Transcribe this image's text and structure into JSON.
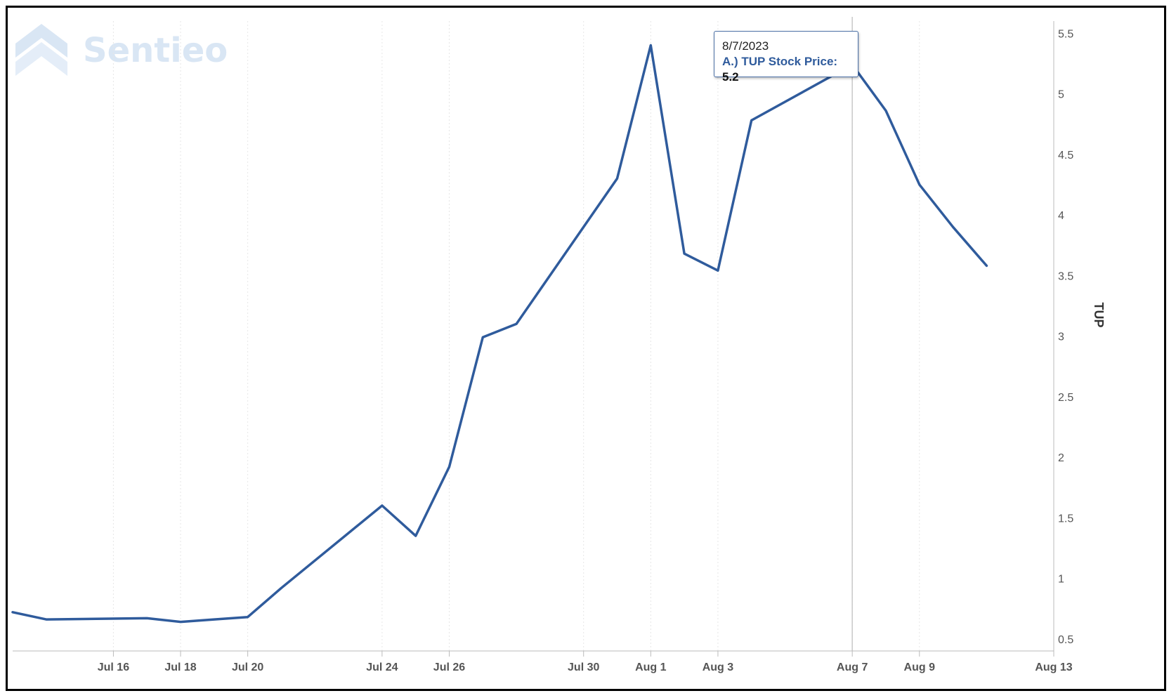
{
  "logo": {
    "text": "Sentieo",
    "icon": "sentieo-chevron-logo-icon"
  },
  "tooltip": {
    "date": "8/7/2023",
    "series_label": "A.) TUP Stock Price:",
    "value": "5.2"
  },
  "colors": {
    "line": "#2f5b9c",
    "grid": "#e6e6e6",
    "crosshair": "#c8c8c8",
    "axis": "#bbbbbb",
    "logo": "#d9e6f4"
  },
  "chart_data": {
    "type": "line",
    "title": "",
    "xlabel": "",
    "ylabel": "TUP",
    "y_axis_position": "right",
    "x_range": [
      "2023-07-13",
      "2023-08-13"
    ],
    "ylim": [
      0.4,
      5.6
    ],
    "x_ticks": [
      {
        "date": "2023-07-16",
        "label": "Jul 16"
      },
      {
        "date": "2023-07-18",
        "label": "Jul 18"
      },
      {
        "date": "2023-07-20",
        "label": "Jul 20"
      },
      {
        "date": "2023-07-24",
        "label": "Jul 24"
      },
      {
        "date": "2023-07-26",
        "label": "Jul 26"
      },
      {
        "date": "2023-07-30",
        "label": "Jul 30"
      },
      {
        "date": "2023-08-01",
        "label": "Aug 1"
      },
      {
        "date": "2023-08-03",
        "label": "Aug 3"
      },
      {
        "date": "2023-08-07",
        "label": "Aug 7"
      },
      {
        "date": "2023-08-09",
        "label": "Aug 9"
      },
      {
        "date": "2023-08-13",
        "label": "Aug 13"
      }
    ],
    "y_ticks": [
      0.5,
      1,
      1.5,
      2,
      2.5,
      3,
      3.5,
      4,
      4.5,
      5,
      5.5
    ],
    "y_tick_labels": [
      "0.5",
      "1",
      "1.5",
      "2",
      "2.5",
      "3",
      "3.5",
      "4",
      "4.5",
      "5",
      "5.5"
    ],
    "crosshair_date": "2023-08-07",
    "series": [
      {
        "name": "A.) TUP Stock Price",
        "points": [
          {
            "x": "2023-07-13",
            "y": 0.72
          },
          {
            "x": "2023-07-14",
            "y": 0.66
          },
          {
            "x": "2023-07-17",
            "y": 0.67
          },
          {
            "x": "2023-07-18",
            "y": 0.64
          },
          {
            "x": "2023-07-19",
            "y": 0.66
          },
          {
            "x": "2023-07-20",
            "y": 0.68
          },
          {
            "x": "2023-07-21",
            "y": 0.92
          },
          {
            "x": "2023-07-24",
            "y": 1.6
          },
          {
            "x": "2023-07-25",
            "y": 1.35
          },
          {
            "x": "2023-07-26",
            "y": 1.92
          },
          {
            "x": "2023-07-27",
            "y": 2.99
          },
          {
            "x": "2023-07-28",
            "y": 3.1
          },
          {
            "x": "2023-07-31",
            "y": 4.3
          },
          {
            "x": "2023-08-01",
            "y": 5.4
          },
          {
            "x": "2023-08-02",
            "y": 3.68
          },
          {
            "x": "2023-08-03",
            "y": 3.54
          },
          {
            "x": "2023-08-04",
            "y": 4.78
          },
          {
            "x": "2023-08-07",
            "y": 5.24
          },
          {
            "x": "2023-08-08",
            "y": 4.86
          },
          {
            "x": "2023-08-09",
            "y": 4.25
          },
          {
            "x": "2023-08-10",
            "y": 3.9
          },
          {
            "x": "2023-08-11",
            "y": 3.58
          }
        ]
      }
    ]
  }
}
